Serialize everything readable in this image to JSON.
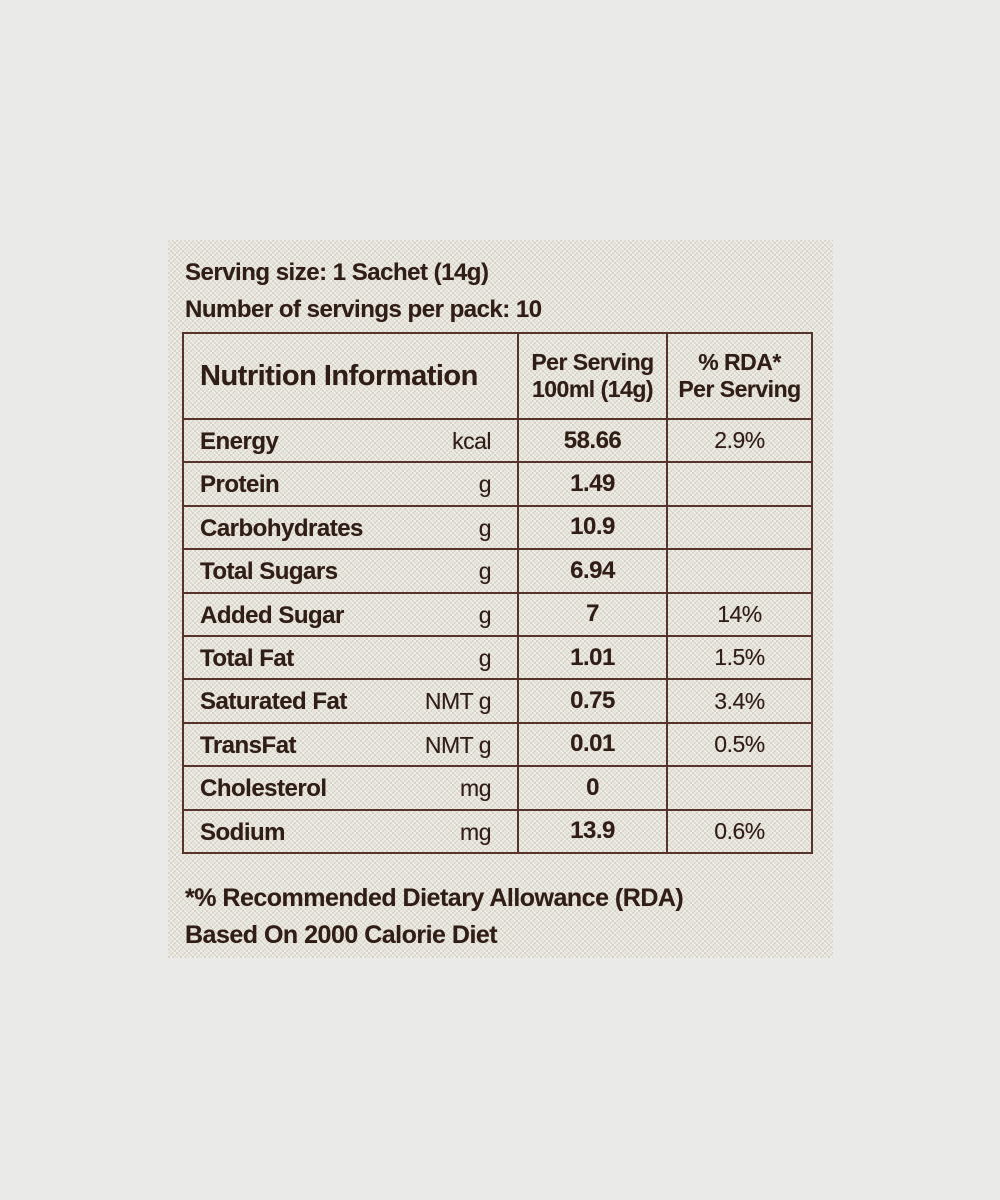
{
  "colors": {
    "page_background": "#eaeae8",
    "label_background": "#e3e0d6",
    "text": "#2f1d16",
    "table_border": "#56332b"
  },
  "label": {
    "serving_size_line": "Serving size: 1 Sachet (14g)",
    "servings_per_pack_line": "Number of servings per pack: 10",
    "footnote_line1": "*% Recommended Dietary Allowance (RDA)",
    "footnote_line2": "Based On 2000 Calorie Diet"
  },
  "table": {
    "header": {
      "col1": "Nutrition Information",
      "col2": "Per Serving\n100ml (14g)",
      "col3": "% RDA*\nPer Serving"
    },
    "rows": [
      {
        "name": "Energy",
        "unit": "kcal",
        "per_serving": "58.66",
        "rda": "2.9%"
      },
      {
        "name": "Protein",
        "unit": "g",
        "per_serving": "1.49",
        "rda": ""
      },
      {
        "name": "Carbohydrates",
        "unit": "g",
        "per_serving": "10.9",
        "rda": ""
      },
      {
        "name": "Total Sugars",
        "unit": "g",
        "per_serving": "6.94",
        "rda": ""
      },
      {
        "name": "Added Sugar",
        "unit": "g",
        "per_serving": "7",
        "rda": "14%"
      },
      {
        "name": "Total Fat",
        "unit": "g",
        "per_serving": "1.01",
        "rda": "1.5%"
      },
      {
        "name": "Saturated Fat",
        "unit": "NMT g",
        "per_serving": "0.75",
        "rda": "3.4%"
      },
      {
        "name": "TransFat",
        "unit": "NMT g",
        "per_serving": "0.01",
        "rda": "0.5%"
      },
      {
        "name": "Cholesterol",
        "unit": "mg",
        "per_serving": "0",
        "rda": ""
      },
      {
        "name": "Sodium",
        "unit": "mg",
        "per_serving": "13.9",
        "rda": "0.6%"
      }
    ]
  }
}
